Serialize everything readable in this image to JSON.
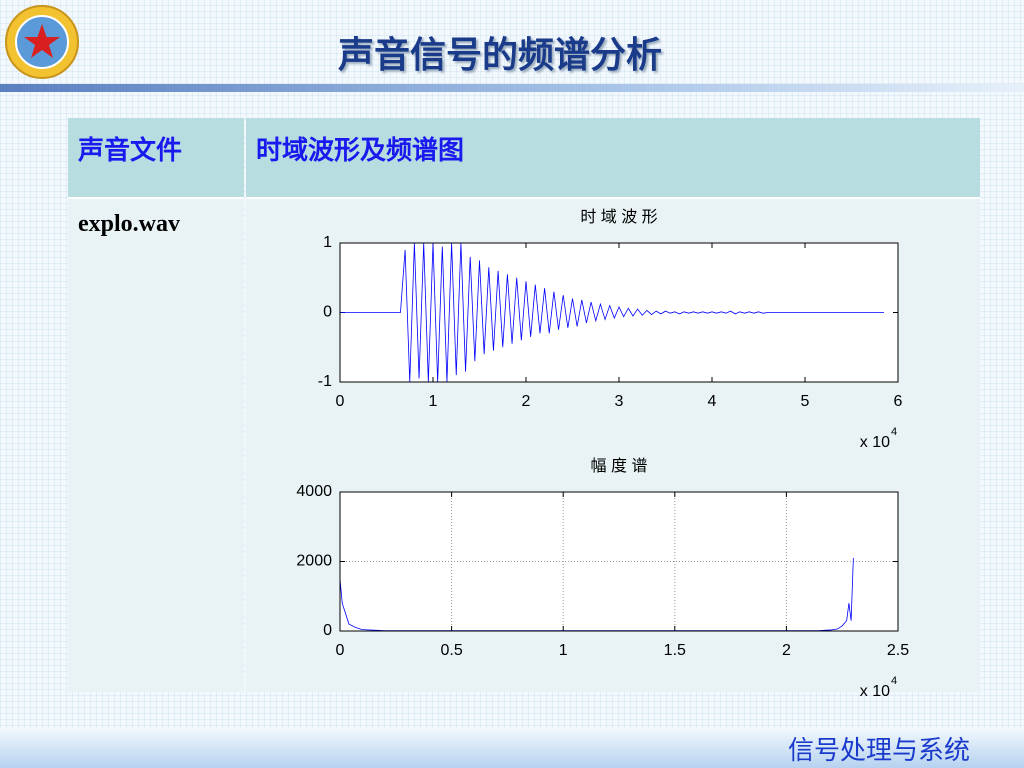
{
  "header": {
    "title": "声音信号的频谱分析"
  },
  "table": {
    "headers": [
      "声音文件",
      "时域波形及频谱图"
    ],
    "rows": [
      [
        "explo.wav"
      ]
    ]
  },
  "footer": {
    "text": "信号处理与系统"
  },
  "chart_data": [
    {
      "type": "line",
      "title": "时 域 波 形",
      "color": "#0000ff",
      "grid": false,
      "xlim": [
        0,
        60000
      ],
      "xticks": [
        0,
        {
          "value": 10000,
          "label": "1"
        },
        {
          "value": 20000,
          "label": "2"
        },
        {
          "value": 30000,
          "label": "3"
        },
        {
          "value": 40000,
          "label": "4"
        },
        {
          "value": 50000,
          "label": "5"
        },
        {
          "value": 60000,
          "label": "6"
        }
      ],
      "x_scale_label": "x 10",
      "x_scale_exponent": "4",
      "ylim": [
        -1,
        1
      ],
      "yticks": [
        -1,
        0,
        1
      ],
      "x": [
        0,
        500,
        1000,
        1500,
        2000,
        2500,
        3000,
        3500,
        4000,
        4500,
        5000,
        5500,
        6000,
        6500,
        7000,
        7500,
        8000,
        8500,
        9000,
        9500,
        10000,
        10500,
        11000,
        11500,
        12000,
        12500,
        13000,
        13500,
        14000,
        14500,
        15000,
        15500,
        16000,
        16500,
        17000,
        17500,
        18000,
        18500,
        19000,
        19500,
        20000,
        20500,
        21000,
        21500,
        22000,
        22500,
        23000,
        23500,
        24000,
        24500,
        25000,
        25500,
        26000,
        26500,
        27000,
        27500,
        28000,
        28500,
        29000,
        29500,
        30000,
        30500,
        31000,
        31500,
        32000,
        32500,
        33000,
        33500,
        34000,
        34500,
        35000,
        35500,
        36000,
        36500,
        37000,
        37500,
        38000,
        38500,
        39000,
        39500,
        40000,
        40500,
        41000,
        41500,
        42000,
        42500,
        43000,
        43500,
        44000,
        44500,
        45000,
        45500,
        46000,
        46500,
        47000,
        47500,
        48000,
        48500,
        49000,
        49500,
        50000,
        50500,
        51000,
        51500,
        52000,
        52500,
        53000,
        53500,
        54000,
        54500,
        55000,
        55500,
        56000,
        56500,
        57000,
        57500,
        58000,
        58500
      ],
      "values": [
        0,
        0,
        0,
        0,
        0,
        0,
        0,
        0,
        0,
        0,
        0,
        0,
        0,
        0,
        0.9,
        -1,
        1,
        -0.95,
        1,
        -1,
        1,
        -1,
        0.95,
        -1,
        1,
        -0.9,
        1,
        -0.85,
        0.8,
        -0.7,
        0.75,
        -0.6,
        0.65,
        -0.55,
        0.6,
        -0.5,
        0.55,
        -0.45,
        0.5,
        -0.4,
        0.45,
        -0.35,
        0.4,
        -0.3,
        0.35,
        -0.3,
        0.3,
        -0.25,
        0.25,
        -0.22,
        0.2,
        -0.2,
        0.18,
        -0.15,
        0.15,
        -0.12,
        0.12,
        -0.1,
        0.1,
        -0.08,
        0.08,
        -0.06,
        0.06,
        -0.05,
        0.05,
        -0.04,
        0.03,
        -0.03,
        0.02,
        -0.02,
        0.02,
        -0.01,
        0.01,
        -0.02,
        0.01,
        -0.01,
        0.01,
        -0.01,
        0.01,
        -0.01,
        0.01,
        -0.01,
        0.01,
        -0.01,
        0.02,
        -0.02,
        0.01,
        -0.01,
        0.01,
        -0.01,
        0.01,
        -0.01,
        0,
        0,
        0,
        0,
        0,
        0,
        0,
        0,
        0,
        0,
        0,
        0,
        0,
        0,
        0,
        0,
        0,
        0,
        0,
        0,
        0,
        0,
        0,
        0,
        0,
        0
      ]
    },
    {
      "type": "line",
      "title": "幅 度 谱",
      "color": "#0000ff",
      "grid": true,
      "xlim": [
        0,
        25000
      ],
      "xticks": [
        0,
        {
          "value": 5000,
          "label": "0.5"
        },
        {
          "value": 10000,
          "label": "1"
        },
        {
          "value": 15000,
          "label": "1.5"
        },
        {
          "value": 20000,
          "label": "2"
        },
        {
          "value": 25000,
          "label": "2.5"
        }
      ],
      "x_scale_label": "x 10",
      "x_scale_exponent": "4",
      "ylim": [
        0,
        4000
      ],
      "yticks": [
        0,
        2000,
        4000
      ],
      "x": [
        0,
        100,
        200,
        400,
        700,
        1000,
        2000,
        3000,
        4000,
        5000,
        6000,
        7000,
        8000,
        9000,
        10000,
        11000,
        12000,
        13000,
        14000,
        15000,
        16000,
        17000,
        18000,
        19000,
        20000,
        21000,
        21500,
        22000,
        22300,
        22500,
        22700,
        22800,
        22900,
        23000
      ],
      "values": [
        1500,
        800,
        600,
        200,
        100,
        40,
        10,
        10,
        10,
        10,
        10,
        10,
        10,
        10,
        10,
        10,
        10,
        10,
        10,
        10,
        10,
        10,
        10,
        10,
        10,
        10,
        15,
        30,
        60,
        150,
        300,
        800,
        300,
        2100
      ]
    }
  ]
}
